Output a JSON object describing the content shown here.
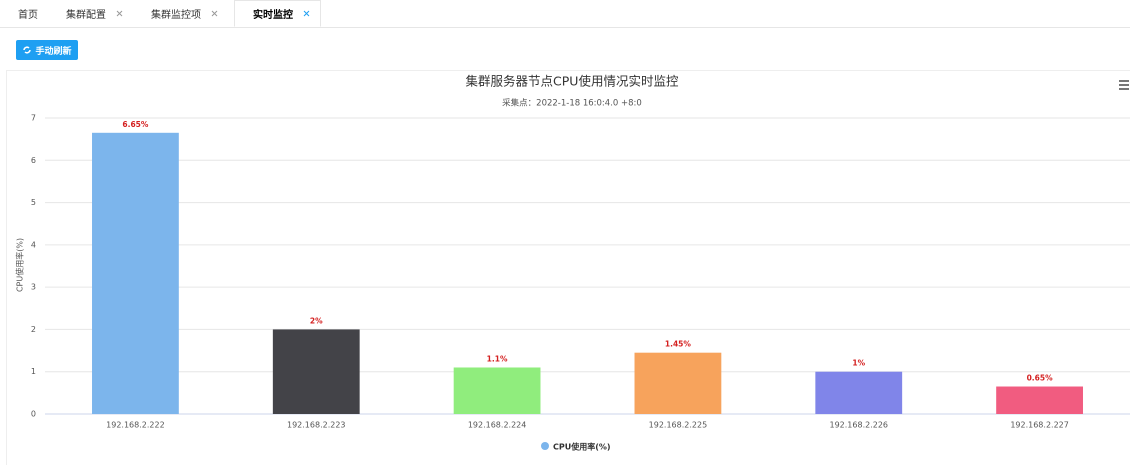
{
  "tabs": [
    {
      "label": "首页",
      "closable": false
    },
    {
      "label": "集群配置",
      "closable": true
    },
    {
      "label": "集群监控项",
      "closable": true
    },
    {
      "label": "实时监控",
      "closable": true
    }
  ],
  "active_tab": 3,
  "button": {
    "label": "手动刷新"
  },
  "chart_data": {
    "type": "bar",
    "title": "集群服务器节点CPU使用情况实时监控",
    "subtitle": "采集点：2022-1-18 16:0:4.0 +8:0",
    "y_label": "CPU使用率(%)",
    "categories": [
      "192.168.2.222",
      "192.168.2.223",
      "192.168.2.224",
      "192.168.2.225",
      "192.168.2.226",
      "192.168.2.227"
    ],
    "series": [
      {
        "name": "CPU使用率(%)",
        "color": "#7cb5ec",
        "values": [
          6.65,
          2,
          1.1,
          1.45,
          1,
          0.65
        ],
        "value_labels": [
          "6.65%",
          "2%",
          "1.1%",
          "1.45%",
          "1%",
          "0.65%"
        ],
        "colors": [
          "#7cb5ec",
          "#434348",
          "#90ed7d",
          "#f7a35c",
          "#8085e9",
          "#f15c80"
        ]
      }
    ],
    "ylim": [
      0,
      7
    ],
    "yticks": [
      0,
      1,
      2,
      3,
      4,
      5,
      6,
      7
    ],
    "grid": true,
    "legend": "bottom"
  }
}
